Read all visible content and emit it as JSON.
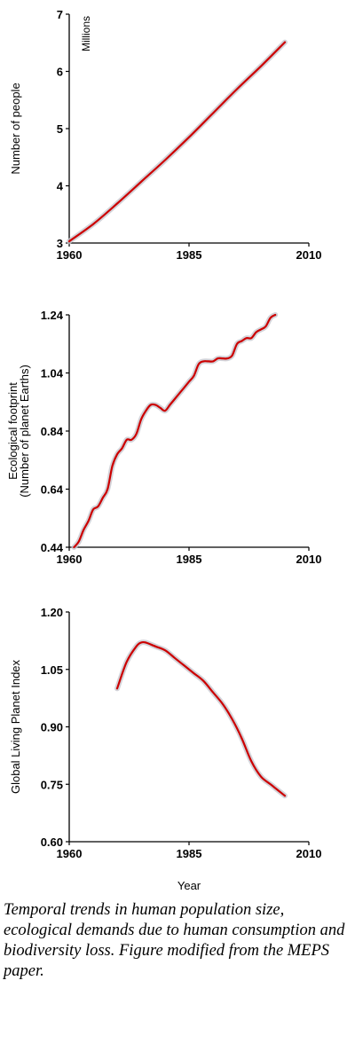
{
  "chart_data": [
    {
      "type": "line",
      "ylabel": "Number of people",
      "annotation": "Millions",
      "xlim": [
        1960,
        2010
      ],
      "ylim": [
        3,
        7
      ],
      "xticks": [
        1960,
        1985,
        2010
      ],
      "yticks": [
        3,
        4,
        5,
        6,
        7
      ],
      "y_decimals": 0,
      "grid": false,
      "color": "#cc0000",
      "series": [
        {
          "x": [
            1960,
            1965,
            1970,
            1975,
            1980,
            1985,
            1990,
            1995,
            2000,
            2005
          ],
          "y": [
            3.03,
            3.33,
            3.69,
            4.07,
            4.45,
            4.85,
            5.27,
            5.69,
            6.09,
            6.51
          ]
        }
      ]
    },
    {
      "type": "line",
      "ylabel": "Ecological footprint\n(Number of planet Earths)",
      "xlim": [
        1960,
        2010
      ],
      "ylim": [
        0.44,
        1.24
      ],
      "xticks": [
        1960,
        1985,
        2010
      ],
      "yticks": [
        0.44,
        0.64,
        0.84,
        1.04,
        1.24
      ],
      "y_decimals": 2,
      "grid": false,
      "color": "#cc0000",
      "series": [
        {
          "x": [
            1961,
            1962,
            1963,
            1964,
            1965,
            1966,
            1967,
            1968,
            1969,
            1970,
            1971,
            1972,
            1973,
            1974,
            1975,
            1976,
            1977,
            1978,
            1979,
            1980,
            1981,
            1982,
            1983,
            1984,
            1985,
            1986,
            1987,
            1988,
            1989,
            1990,
            1991,
            1992,
            1993,
            1994,
            1995,
            1996,
            1997,
            1998,
            1999,
            2000,
            2001,
            2002,
            2003
          ],
          "y": [
            0.44,
            0.46,
            0.5,
            0.53,
            0.57,
            0.58,
            0.61,
            0.64,
            0.72,
            0.76,
            0.78,
            0.81,
            0.81,
            0.83,
            0.88,
            0.91,
            0.93,
            0.93,
            0.92,
            0.91,
            0.93,
            0.95,
            0.97,
            0.99,
            1.01,
            1.03,
            1.07,
            1.08,
            1.08,
            1.08,
            1.09,
            1.09,
            1.09,
            1.1,
            1.14,
            1.15,
            1.16,
            1.16,
            1.18,
            1.19,
            1.2,
            1.23,
            1.24
          ]
        }
      ]
    },
    {
      "type": "line",
      "ylabel": "Global Living Planet Index",
      "xlabel": "Year",
      "xlim": [
        1960,
        2010
      ],
      "ylim": [
        0.6,
        1.2
      ],
      "xticks": [
        1960,
        1985,
        2010
      ],
      "yticks": [
        0.6,
        0.75,
        0.9,
        1.05,
        1.2
      ],
      "y_decimals": 2,
      "grid": false,
      "color": "#cc0000",
      "series": [
        {
          "x": [
            1970,
            1972,
            1974,
            1975,
            1976,
            1978,
            1980,
            1982,
            1984,
            1986,
            1988,
            1990,
            1992,
            1994,
            1996,
            1998,
            2000,
            2002,
            2003,
            2005
          ],
          "y": [
            1.0,
            1.07,
            1.11,
            1.12,
            1.12,
            1.11,
            1.1,
            1.08,
            1.06,
            1.04,
            1.02,
            0.99,
            0.96,
            0.92,
            0.87,
            0.81,
            0.77,
            0.75,
            0.74,
            0.72
          ]
        }
      ]
    }
  ],
  "caption": "Temporal trends in human population size, ecological demands due to human consumption and biodiversity loss. Figure modified from the MEPS paper."
}
